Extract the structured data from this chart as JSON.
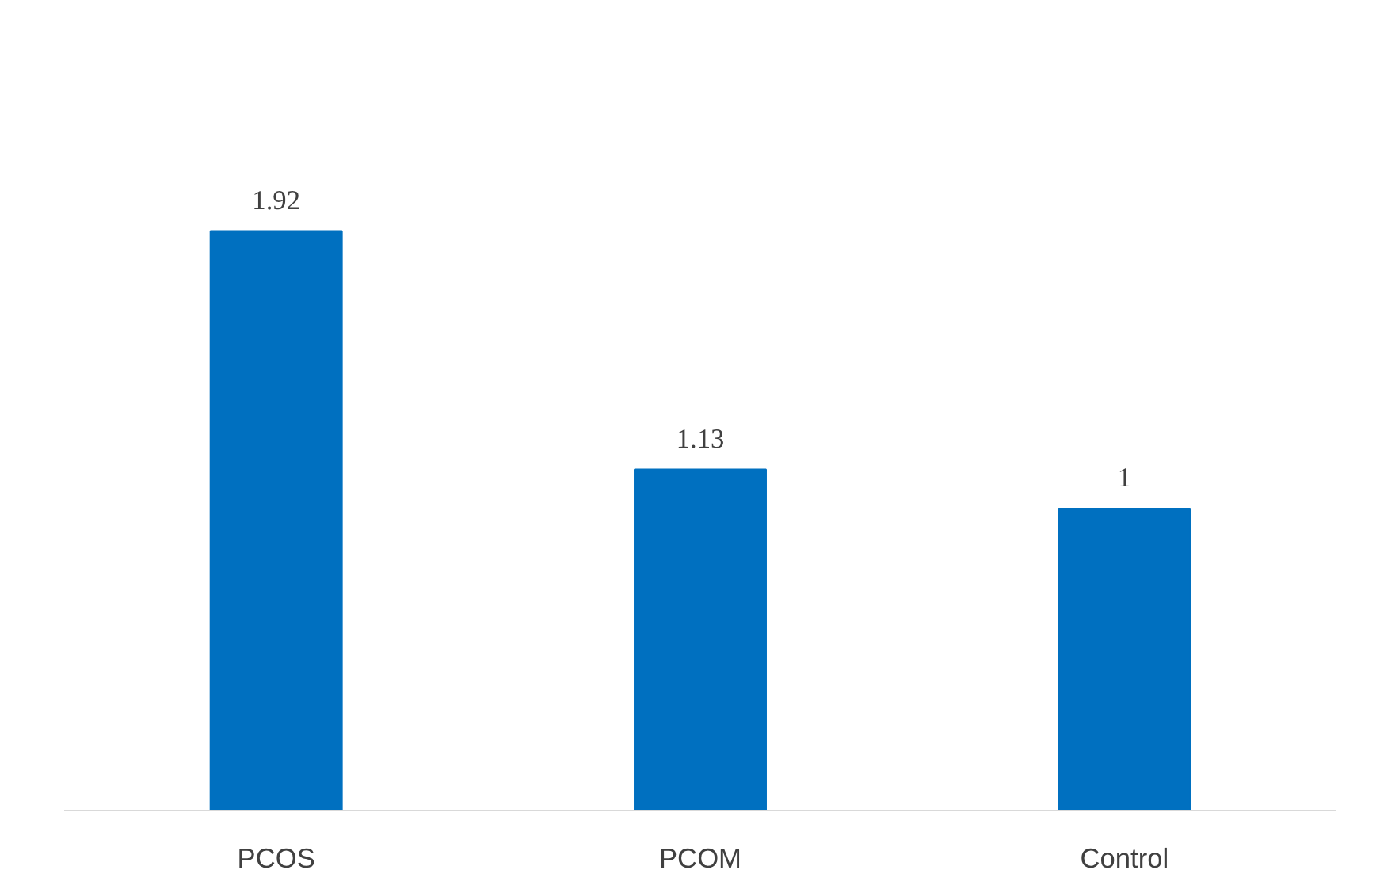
{
  "chart_data": {
    "type": "bar",
    "categories": [
      "PCOS",
      "PCOM",
      "Control"
    ],
    "values": [
      1.92,
      1.13,
      1
    ],
    "color": "#0070c0",
    "data_labels": true
  }
}
